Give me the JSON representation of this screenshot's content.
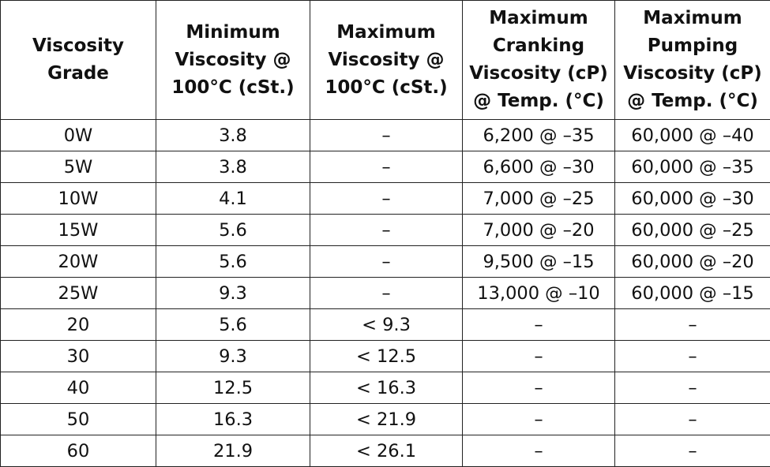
{
  "table": {
    "header": [
      [
        "Viscosity",
        "Grade"
      ],
      [
        "Minimum",
        "Viscosity @",
        "100°C (cSt.)"
      ],
      [
        "Maximum",
        "Viscosity @",
        "100°C (cSt.)"
      ],
      [
        "Maximum",
        "Cranking",
        "Viscosity (cP)",
        "@ Temp. (°C)"
      ],
      [
        "Maximum",
        "Pumping",
        "Viscosity (cP)",
        "@ Temp. (°C)"
      ]
    ],
    "rows": [
      [
        "0W",
        "3.8",
        "–",
        "6,200 @ –35",
        "60,000 @ –40"
      ],
      [
        "5W",
        "3.8",
        "–",
        "6,600 @ –30",
        "60,000 @ –35"
      ],
      [
        "10W",
        "4.1",
        "–",
        "7,000 @ –25",
        "60,000 @ –30"
      ],
      [
        "15W",
        "5.6",
        "–",
        "7,000 @ –20",
        "60,000 @ –25"
      ],
      [
        "20W",
        "5.6",
        "–",
        "9,500 @ –15",
        "60,000 @ –20"
      ],
      [
        "25W",
        "9.3",
        "–",
        "13,000 @ –10",
        "60,000 @ –15"
      ],
      [
        "20",
        "5.6",
        "< 9.3",
        "–",
        "–"
      ],
      [
        "30",
        "9.3",
        "< 12.5",
        "–",
        "–"
      ],
      [
        "40",
        "12.5",
        "< 16.3",
        "–",
        "–"
      ],
      [
        "50",
        "16.3",
        "< 21.9",
        "–",
        "–"
      ],
      [
        "60",
        "21.9",
        "< 26.1",
        "–",
        "–"
      ]
    ]
  }
}
